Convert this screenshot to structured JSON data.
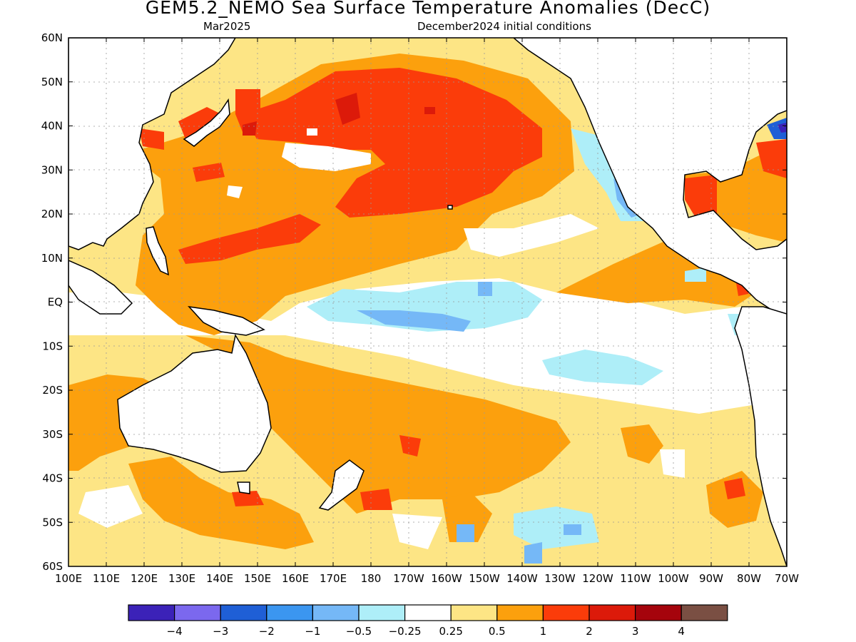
{
  "title": "GEM5.2_NEMO Sea Surface Temperature Anomalies (DecC)",
  "subtitle_left": "Mar2025",
  "subtitle_right": "December2024 initial conditions",
  "lat_ticks": [
    "60N",
    "50N",
    "40N",
    "30N",
    "20N",
    "10N",
    "EQ",
    "10S",
    "20S",
    "30S",
    "40S",
    "50S",
    "60S"
  ],
  "lon_ticks": [
    "100E",
    "110E",
    "120E",
    "130E",
    "140E",
    "150E",
    "160E",
    "170E",
    "180",
    "170W",
    "160W",
    "150W",
    "140W",
    "130W",
    "120W",
    "110W",
    "100W",
    "90W",
    "80W",
    "70W"
  ],
  "legend": {
    "colors": [
      "#3b22b8",
      "#7b68ee",
      "#1f5fd6",
      "#3b96f0",
      "#75b8f7",
      "#aeeef8",
      "#ffffff",
      "#fde585",
      "#fca00d",
      "#fb3c0a",
      "#dc1a0a",
      "#a5040c",
      "#7a4f43"
    ],
    "labels": [
      "−4",
      "−3",
      "−2",
      "−1",
      "−0.5",
      "−0.25",
      "0.25",
      "0.5",
      "1",
      "2",
      "3",
      "4"
    ]
  },
  "anomaly_fields": [
    {
      "level": "0.25 to 0.5",
      "color": "#fde585",
      "regions": [
        "North Pacific",
        "western tropical Pacific",
        "South Pacific",
        "Gulf of Mexico",
        "Caribbean"
      ]
    },
    {
      "level": "0.5 to 1",
      "color": "#fca00d",
      "regions": [
        "North Pacific",
        "western Pacific warm pool",
        "Maritime Continent",
        "South Pacific",
        "southeast Indian Ocean",
        "eastern tropical Pacific"
      ]
    },
    {
      "level": "1 to 2",
      "color": "#fb3c0a",
      "regions": [
        "central North Pacific",
        "Sea of Japan",
        "east of Japan",
        "north of New Guinea",
        "Tasman Sea",
        "Gulf of Mexico"
      ]
    },
    {
      "level": "2 to 3",
      "color": "#dc1a0a",
      "regions": [
        "northwest Pacific near Kuril Islands",
        "central North Pacific"
      ]
    },
    {
      "level": "-0.25 to -0.5",
      "color": "#aeeef8",
      "regions": [
        "equatorial central Pacific",
        "off Baja California",
        "southeast Pacific"
      ]
    },
    {
      "level": "-0.5 to -1",
      "color": "#75b8f7",
      "regions": [
        "equatorial central Pacific",
        "off Baja California",
        "Southern Ocean"
      ]
    },
    {
      "level": "-1 to -4",
      "color": "#1f5fd6",
      "regions": [
        "off US east coast near Cape Hatteras"
      ]
    }
  ]
}
